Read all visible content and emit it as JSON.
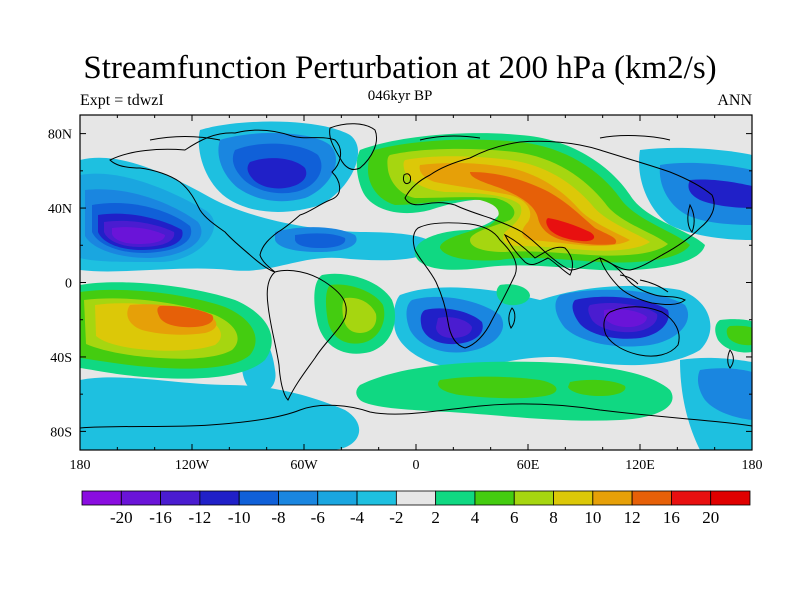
{
  "title": "Streamfunction Perturbation at 200 hPa (km2/s)",
  "left_subtitle": "Expt = tdwzI",
  "center_subtitle": "046kyr BP",
  "right_subtitle": "ANN",
  "colors": {
    "land_outline": "#000000",
    "neutral_fill": "#e6e6e6"
  },
  "chart_data": {
    "type": "heatmap",
    "projection": "cylindrical-equidistant",
    "x_ticks": [
      "180",
      "120W",
      "60W",
      "0",
      "60E",
      "120E",
      "180"
    ],
    "x_tick_values": [
      -180,
      -120,
      -60,
      0,
      60,
      120,
      180
    ],
    "y_ticks": [
      "80N",
      "40N",
      "0",
      "40S",
      "80S"
    ],
    "y_tick_values": [
      80,
      40,
      0,
      -40,
      -80
    ],
    "lon_range": [
      -180,
      180
    ],
    "lat_range": [
      -90,
      90
    ],
    "colorbar": {
      "labels": [
        "-20",
        "-16",
        "-12",
        "-10",
        "-8",
        "-6",
        "-4",
        "-2",
        "2",
        "4",
        "6",
        "8",
        "10",
        "12",
        "16",
        "20"
      ],
      "colors": [
        "#8a0de0",
        "#6a14d8",
        "#4a1cd0",
        "#2020c8",
        "#1060d8",
        "#1a86e0",
        "#1aa6e0",
        "#1ec0e0",
        "#e6e6e6",
        "#10d882",
        "#44cc10",
        "#a6d610",
        "#dcc808",
        "#e6a008",
        "#e66008",
        "#e81010",
        "#e00000"
      ]
    },
    "anomaly_centers": [
      {
        "lon": -120,
        "lat": 60,
        "value": -12
      },
      {
        "lon": -140,
        "lat": 25,
        "value": -20
      },
      {
        "lon": -50,
        "lat": 22,
        "value": -10
      },
      {
        "lon": 95,
        "lat": 25,
        "value": 16
      },
      {
        "lon": 40,
        "lat": 55,
        "value": 8
      },
      {
        "lon": 160,
        "lat": 48,
        "value": -10
      },
      {
        "lon": -130,
        "lat": -20,
        "value": 12
      },
      {
        "lon": 20,
        "lat": -25,
        "value": -12
      },
      {
        "lon": 110,
        "lat": -20,
        "value": -16
      },
      {
        "lon": -30,
        "lat": -15,
        "value": 8
      },
      {
        "lon": 30,
        "lat": -55,
        "value": 4
      },
      {
        "lon": -150,
        "lat": -75,
        "value": -6
      }
    ]
  }
}
